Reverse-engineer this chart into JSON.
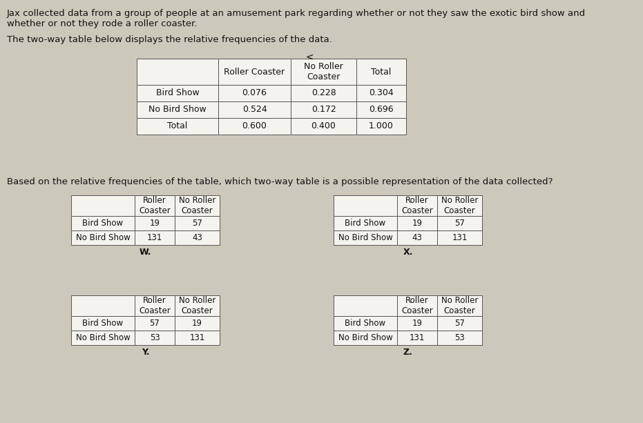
{
  "background_color": "#cdc8bc",
  "title_line1": "Jax collected data from a group of people at an amusement park regarding whether or not they saw the exotic bird show and",
  "title_line2": "whether or not they rode a roller coaster.",
  "subtitle_text": "The two-way table below displays the relative frequencies of the data.",
  "question_text": "Based on the relative frequencies of the table, which two-way table is a possible representation of the data collected?",
  "main_table": {
    "col_headers": [
      "",
      "Roller Coaster",
      "No Roller\nCoaster",
      "Total"
    ],
    "rows": [
      [
        "Bird Show",
        "0.076",
        "0.228",
        "0.304"
      ],
      [
        "No Bird Show",
        "0.524",
        "0.172",
        "0.696"
      ],
      [
        "Total",
        "0.600",
        "0.400",
        "1.000"
      ]
    ]
  },
  "sub_tables": [
    {
      "label": "W.",
      "col_headers": [
        "",
        "Roller\nCoaster",
        "No Roller\nCoaster"
      ],
      "rows": [
        [
          "Bird Show",
          "19",
          "57"
        ],
        [
          "No Bird Show",
          "131",
          "43"
        ]
      ]
    },
    {
      "label": "X.",
      "col_headers": [
        "",
        "Roller\nCoaster",
        "No Roller\nCoaster"
      ],
      "rows": [
        [
          "Bird Show",
          "19",
          "57"
        ],
        [
          "No Bird Show",
          "43",
          "131"
        ]
      ]
    },
    {
      "label": "Y.",
      "col_headers": [
        "",
        "Roller\nCoaster",
        "No Roller\nCoaster"
      ],
      "rows": [
        [
          "Bird Show",
          "57",
          "19"
        ],
        [
          "No Bird Show",
          "53",
          "131"
        ]
      ]
    },
    {
      "label": "Z.",
      "col_headers": [
        "",
        "Roller\nCoaster",
        "No Roller\nCoaster"
      ],
      "rows": [
        [
          "Bird Show",
          "19",
          "57"
        ],
        [
          "No Bird Show",
          "131",
          "53"
        ]
      ]
    }
  ],
  "less_than_symbol": "<",
  "table_bg": "#f5f3ee",
  "border_color": "#555555",
  "text_color": "#111111",
  "font_size_title": 9.5,
  "font_size_table": 9,
  "font_size_sub": 8.5
}
